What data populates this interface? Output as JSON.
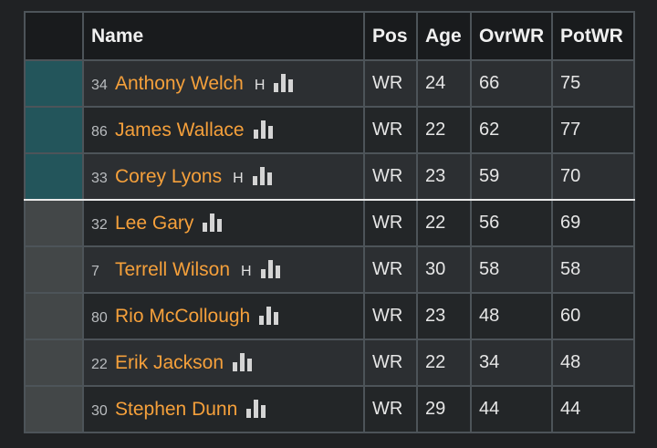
{
  "table": {
    "headers": {
      "name": "Name",
      "pos": "Pos",
      "age": "Age",
      "ovr": "OvrWR",
      "pot": "PotWR"
    },
    "rows": [
      {
        "jersey": "34",
        "name": "Anthony Welch",
        "hand": "H",
        "pos": "WR",
        "age": "24",
        "ovr": "66",
        "pot": "75"
      },
      {
        "jersey": "86",
        "name": "James Wallace",
        "hand": "",
        "pos": "WR",
        "age": "22",
        "ovr": "62",
        "pot": "77"
      },
      {
        "jersey": "33",
        "name": "Corey Lyons",
        "hand": "H",
        "pos": "WR",
        "age": "23",
        "ovr": "59",
        "pot": "70"
      },
      {
        "jersey": "32",
        "name": "Lee Gary",
        "hand": "",
        "pos": "WR",
        "age": "22",
        "ovr": "56",
        "pot": "69"
      },
      {
        "jersey": "7",
        "name": "Terrell Wilson",
        "hand": "H",
        "pos": "WR",
        "age": "30",
        "ovr": "58",
        "pot": "58"
      },
      {
        "jersey": "80",
        "name": "Rio McCollough",
        "hand": "",
        "pos": "WR",
        "age": "23",
        "ovr": "48",
        "pot": "60"
      },
      {
        "jersey": "22",
        "name": "Erik Jackson",
        "hand": "",
        "pos": "WR",
        "age": "22",
        "ovr": "34",
        "pot": "48"
      },
      {
        "jersey": "30",
        "name": "Stephen Dunn",
        "hand": "",
        "pos": "WR",
        "age": "29",
        "ovr": "44",
        "pot": "44"
      }
    ]
  },
  "icons": {
    "stats": "bar-chart-icon"
  },
  "colors": {
    "name_link": "#f5a03b",
    "starter_marker": "#23555b",
    "reserve_marker": "#434748"
  }
}
